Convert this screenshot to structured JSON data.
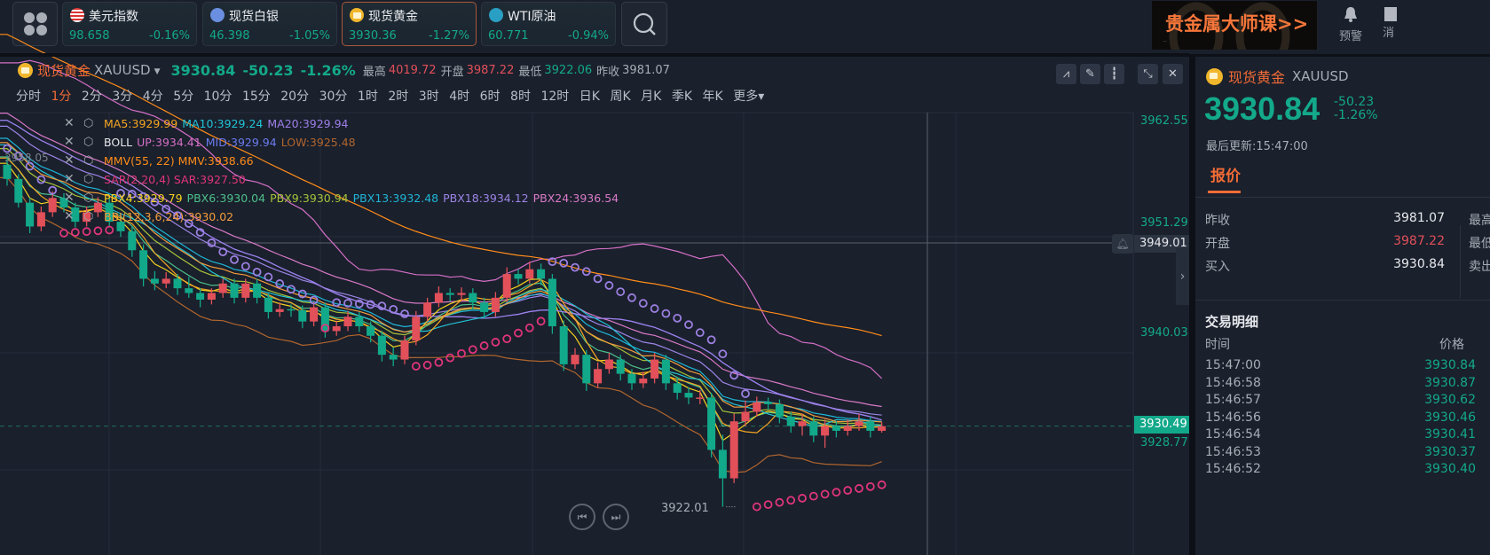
{
  "topbar": {
    "cards": [
      {
        "name": "美元指数",
        "value": "98.658",
        "change": "-0.16%",
        "icon": "us-flag-icon"
      },
      {
        "name": "现货白银",
        "value": "46.398",
        "change": "-1.05%",
        "icon": "silver-icon"
      },
      {
        "name": "现货黄金",
        "value": "3930.36",
        "change": "-1.27%",
        "icon": "gold-icon",
        "selected": true
      },
      {
        "name": "WTI原油",
        "value": "60.771",
        "change": "-0.94%",
        "icon": "oil-icon"
      }
    ],
    "ad_text": "贵金属大师课>>",
    "ad_watermark": "GOLD",
    "alarm_label": "预警",
    "message_label": "消"
  },
  "chart_header": {
    "name": "现货黄金",
    "symbol": "XAUUSD",
    "price": "3930.84",
    "change": "-50.23",
    "change_pct": "-1.26%",
    "high_label": "最高",
    "high": "4019.72",
    "open_label": "开盘",
    "open": "3987.22",
    "low_label": "最低",
    "low": "3922.06",
    "prev_close_label": "昨收",
    "prev_close": "3981.07"
  },
  "periods": [
    "分时",
    "1分",
    "2分",
    "3分",
    "4分",
    "5分",
    "10分",
    "15分",
    "20分",
    "30分",
    "1时",
    "2时",
    "3时",
    "4时",
    "6时",
    "8时",
    "12时",
    "日K",
    "周K",
    "月K",
    "季K",
    "年K",
    "更多▾"
  ],
  "active_period": "1分",
  "colors": {
    "up": "#e2505a",
    "down": "#12a88a",
    "accent": "#f26b36",
    "grid": "#262d3a"
  },
  "legends": [
    [
      {
        "t": "MA5:3929.99",
        "c": "#f5a623"
      },
      {
        "t": "MA10:3929.24",
        "c": "#22c3d6"
      },
      {
        "t": "MA20:3929.94",
        "c": "#9d7fe8"
      }
    ],
    [
      {
        "t": "BOLL",
        "c": "#e6e8ec"
      },
      {
        "t": "UP:3934.41",
        "c": "#d46fc6"
      },
      {
        "t": "MID:3929.94",
        "c": "#6b7cf0"
      },
      {
        "t": "LOW:3925.48",
        "c": "#b0652e"
      }
    ],
    [
      {
        "t": "MMV(55, 22) MMV:3938.66",
        "c": "#ff8c1a"
      }
    ],
    [
      {
        "t": "SAR(2,20,4) SAR:3927.50",
        "c": "#e0357a"
      }
    ],
    [
      {
        "t": "PBX4:3929.79",
        "c": "#f5d320"
      },
      {
        "t": "PBX6:3930.04",
        "c": "#4cc08a"
      },
      {
        "t": "PBX9:3930.94",
        "c": "#a8c23a"
      },
      {
        "t": "PBX13:3932.48",
        "c": "#1fb5d6"
      },
      {
        "t": "PBX18:3934.12",
        "c": "#9c84e6"
      },
      {
        "t": "PBX24:3936.54",
        "c": "#d97ac8"
      }
    ],
    [
      {
        "t": "BBI(12,3,6,24):3930.02",
        "c": "#f39c3c"
      }
    ]
  ],
  "chart_data": {
    "type": "candlestick",
    "y_ticks": [
      "3962.55",
      "3951.29",
      "3940.03",
      "3928.77"
    ],
    "ylim": [
      3922.01,
      3962.55
    ],
    "crosshair_price": "3949.01",
    "current_price": "3930.49",
    "low_marker": "3922.01",
    "left_marker": "3958.05",
    "grid": true,
    "ohlc": [
      [
        3958,
        3959,
        3955.8,
        3956.5
      ],
      [
        3956.5,
        3957,
        3953.5,
        3954
      ],
      [
        3954,
        3954.5,
        3950.8,
        3951.5
      ],
      [
        3951.5,
        3953.6,
        3951,
        3953
      ],
      [
        3953,
        3955.2,
        3952.5,
        3954.5
      ],
      [
        3954.5,
        3955,
        3953,
        3953.5
      ],
      [
        3953.5,
        3954,
        3951.4,
        3952
      ],
      [
        3952,
        3953.6,
        3951.5,
        3953
      ],
      [
        3953,
        3954.6,
        3952.5,
        3954
      ],
      [
        3954,
        3954.5,
        3951.5,
        3952
      ],
      [
        3952,
        3952.6,
        3950.4,
        3951
      ],
      [
        3951,
        3951.5,
        3948.3,
        3949
      ],
      [
        3949,
        3949.6,
        3945.2,
        3946
      ],
      [
        3946,
        3946.8,
        3944.8,
        3945.5
      ],
      [
        3945.5,
        3946.7,
        3945,
        3946
      ],
      [
        3946,
        3946.5,
        3944.3,
        3945
      ],
      [
        3945,
        3946.2,
        3944,
        3944.5
      ],
      [
        3944.5,
        3945,
        3943,
        3943.8
      ],
      [
        3943.8,
        3945,
        3943.3,
        3944.5
      ],
      [
        3944.5,
        3946,
        3944,
        3945.5
      ],
      [
        3945.5,
        3946,
        3943.4,
        3944
      ],
      [
        3944,
        3946,
        3943.5,
        3945.5
      ],
      [
        3945.5,
        3946,
        3943.4,
        3944
      ],
      [
        3944,
        3944.5,
        3941.8,
        3942.5
      ],
      [
        3942.5,
        3943.5,
        3942,
        3942.8
      ],
      [
        3942.8,
        3943.3,
        3942,
        3942.7
      ],
      [
        3942.7,
        3943.2,
        3940.8,
        3941.5
      ],
      [
        3941.5,
        3943.6,
        3941,
        3943
      ],
      [
        3943,
        3943.5,
        3939.8,
        3940.5
      ],
      [
        3940.5,
        3941.6,
        3940,
        3941
      ],
      [
        3941,
        3942.6,
        3940.5,
        3942
      ],
      [
        3942,
        3942.5,
        3940.4,
        3941
      ],
      [
        3941,
        3941.5,
        3939.3,
        3940
      ],
      [
        3940,
        3940.5,
        3937.3,
        3938
      ],
      [
        3938,
        3938.8,
        3936.8,
        3937.5
      ],
      [
        3937.5,
        3940,
        3937,
        3939.5
      ],
      [
        3939.5,
        3942.6,
        3939,
        3942
      ],
      [
        3942,
        3944,
        3941.5,
        3943.5
      ],
      [
        3943.5,
        3945.2,
        3943,
        3944.5
      ],
      [
        3944.5,
        3945,
        3943.6,
        3944.3
      ],
      [
        3944.3,
        3945.1,
        3943.7,
        3944.5
      ],
      [
        3944.5,
        3945,
        3942.8,
        3943.5
      ],
      [
        3943.5,
        3944,
        3941.8,
        3942.5
      ],
      [
        3942.5,
        3944.6,
        3942,
        3944
      ],
      [
        3944,
        3947.2,
        3943.5,
        3946.5
      ],
      [
        3946.5,
        3947,
        3945.4,
        3946
      ],
      [
        3946,
        3947.8,
        3945.5,
        3947
      ],
      [
        3947,
        3947.6,
        3945.3,
        3946
      ],
      [
        3946,
        3946.5,
        3940.2,
        3941
      ],
      [
        3941,
        3941.6,
        3936.3,
        3937
      ],
      [
        3937,
        3938.7,
        3936.5,
        3938
      ],
      [
        3938,
        3938.5,
        3934.2,
        3935
      ],
      [
        3935,
        3937.2,
        3934.5,
        3936.5
      ],
      [
        3936.5,
        3938.2,
        3936,
        3937.5
      ],
      [
        3937.5,
        3938,
        3935.3,
        3936
      ],
      [
        3936,
        3936.5,
        3934.3,
        3935
      ],
      [
        3935,
        3936.2,
        3934.5,
        3935.5
      ],
      [
        3935.5,
        3938.2,
        3935,
        3937.5
      ],
      [
        3937.5,
        3938,
        3934.3,
        3935
      ],
      [
        3935,
        3935.6,
        3933.3,
        3934
      ],
      [
        3934,
        3934.6,
        3932.8,
        3933.5
      ],
      [
        3933.5,
        3934.3,
        3932.8,
        3933.5
      ],
      [
        3933.5,
        3934,
        3927.2,
        3928
      ],
      [
        3928,
        3929.6,
        3922.01,
        3925
      ],
      [
        3925,
        3931.8,
        3924.5,
        3931
      ],
      [
        3931,
        3933.2,
        3930.5,
        3932
      ],
      [
        3932,
        3933.6,
        3931.5,
        3933
      ],
      [
        3933,
        3933.5,
        3932.2,
        3932.8
      ],
      [
        3932.8,
        3933.3,
        3930.8,
        3931.5
      ],
      [
        3931.5,
        3932,
        3929.8,
        3930.5
      ],
      [
        3930.5,
        3931.8,
        3929.5,
        3931
      ],
      [
        3931,
        3931.5,
        3928.8,
        3929.5
      ],
      [
        3929.5,
        3931.2,
        3928.2,
        3930.5
      ],
      [
        3930.5,
        3931,
        3929.3,
        3930
      ],
      [
        3930,
        3931.2,
        3929.5,
        3930.5
      ],
      [
        3930.5,
        3931.8,
        3930,
        3931
      ],
      [
        3931,
        3931.5,
        3929.3,
        3930
      ],
      [
        3930,
        3930.9,
        3929.8,
        3930.49
      ]
    ]
  },
  "right_panel": {
    "name": "现货黄金",
    "symbol": "XAUUSD",
    "price": "3930.84",
    "change": "-50.23",
    "change_pct": "-1.26%",
    "updated": "最后更新:15:47:00",
    "tab": "报价",
    "quotes": [
      {
        "label": "昨收",
        "value": "3981.07",
        "color": "#e6e8ec"
      },
      {
        "label": "开盘",
        "value": "3987.22",
        "color": "#e2505a"
      },
      {
        "label": "买入",
        "value": "3930.84",
        "color": "#e6e8ec"
      }
    ],
    "quotes_right": [
      "最高",
      "最低",
      "卖出"
    ],
    "trades_title": "交易明细",
    "trades_header": {
      "time": "时间",
      "price": "价格"
    },
    "trades": [
      {
        "time": "15:47:00",
        "price": "3930.84"
      },
      {
        "time": "15:46:58",
        "price": "3930.87"
      },
      {
        "time": "15:46:57",
        "price": "3930.62"
      },
      {
        "time": "15:46:56",
        "price": "3930.46"
      },
      {
        "time": "15:46:54",
        "price": "3930.41"
      },
      {
        "time": "15:46:53",
        "price": "3930.37"
      },
      {
        "time": "15:46:52",
        "price": "3930.40"
      }
    ]
  }
}
